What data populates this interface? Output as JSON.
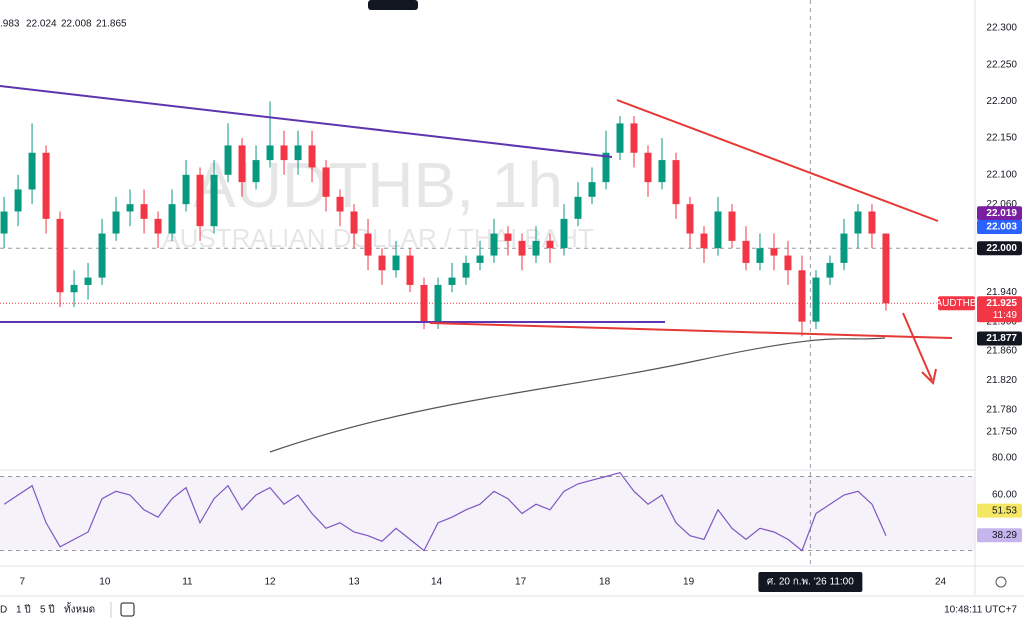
{
  "header": {
    "values": [
      ".983",
      "22.024",
      "22.008",
      "21.865"
    ]
  },
  "watermark": {
    "symbol": "AUDTHB, 1h",
    "description": "AUSTRALIAN DOLLAR / THAI BAHT"
  },
  "chart_data": [
    {
      "type": "candlestick",
      "first_open": 22.02,
      "close": [
        22.05,
        22.08,
        22.13,
        22.04,
        21.94,
        21.95,
        21.96,
        22.02,
        22.05,
        22.06,
        22.04,
        22.02,
        22.06,
        22.1,
        22.03,
        22.1,
        22.14,
        22.09,
        22.12,
        22.14,
        22.12,
        22.14,
        22.11,
        22.07,
        22.05,
        22.02,
        21.99,
        21.97,
        21.99,
        21.95,
        21.9,
        21.95,
        21.96,
        21.98,
        21.99,
        22.02,
        22.01,
        21.99,
        22.01,
        22.0,
        22.04,
        22.07,
        22.09,
        22.13,
        22.17,
        22.13,
        22.09,
        22.12,
        22.06,
        22.02,
        22.0,
        22.05,
        22.01,
        21.98,
        22.0,
        21.99,
        21.97,
        21.9,
        21.96,
        21.98,
        22.02,
        22.05,
        22.02,
        21.925
      ],
      "high": [
        22.07,
        22.1,
        22.17,
        22.14,
        22.05,
        21.97,
        21.98,
        22.04,
        22.07,
        22.08,
        22.08,
        22.05,
        22.08,
        22.12,
        22.11,
        22.12,
        22.17,
        22.15,
        22.14,
        22.2,
        22.16,
        22.16,
        22.16,
        22.12,
        22.08,
        22.06,
        22.04,
        22.0,
        22.01,
        22.0,
        21.96,
        21.96,
        21.98,
        21.99,
        22.01,
        22.04,
        22.03,
        22.02,
        22.03,
        22.02,
        22.06,
        22.09,
        22.11,
        22.16,
        22.18,
        22.18,
        22.14,
        22.15,
        22.13,
        22.07,
        22.03,
        22.07,
        22.06,
        22.03,
        22.02,
        22.02,
        22.01,
        21.99,
        21.97,
        21.99,
        22.04,
        22.06,
        22.06,
        22.02
      ],
      "low": [
        22.0,
        22.03,
        22.06,
        22.02,
        21.92,
        21.92,
        21.93,
        21.95,
        22.01,
        22.03,
        22.02,
        22.0,
        22.01,
        22.05,
        22.01,
        22.02,
        22.09,
        22.07,
        22.08,
        22.11,
        22.1,
        22.1,
        22.09,
        22.05,
        22.03,
        22.0,
        21.97,
        21.95,
        21.96,
        21.94,
        21.89,
        21.89,
        21.94,
        21.95,
        21.97,
        21.98,
        21.99,
        21.97,
        21.98,
        21.98,
        21.99,
        22.03,
        22.06,
        22.08,
        22.12,
        22.11,
        22.07,
        22.08,
        22.04,
        22.0,
        21.98,
        21.99,
        22.0,
        21.97,
        21.97,
        21.97,
        21.95,
        21.88,
        21.89,
        21.95,
        21.97,
        22.0,
        22.0,
        21.915
      ],
      "up_color": "#089981",
      "down_color": "#f23645",
      "xlim": [
        -0.29,
        69.36
      ],
      "xticks": [
        {
          "value": 1.3,
          "label": "7"
        },
        {
          "value": 7.2,
          "label": "10"
        },
        {
          "value": 13.1,
          "label": "11"
        },
        {
          "value": 19,
          "label": "12"
        },
        {
          "value": 25,
          "label": "13"
        },
        {
          "value": 30.9,
          "label": "14"
        },
        {
          "value": 36.9,
          "label": "17"
        },
        {
          "value": 42.9,
          "label": "18"
        },
        {
          "value": 48.9,
          "label": "19"
        },
        {
          "value": 66.9,
          "label": "24"
        }
      ],
      "crosshair": {
        "x": 57.6,
        "label": "ศ. 20 ก.พ. '26  11:00",
        "y": 22.0
      },
      "ylim": [
        21.698,
        22.338
      ],
      "yticks": [
        {
          "value": 22.3,
          "label": "22.300"
        },
        {
          "value": 22.25,
          "label": "22.250"
        },
        {
          "value": 22.2,
          "label": "22.200"
        },
        {
          "value": 22.15,
          "label": "22.150"
        },
        {
          "value": 22.1,
          "label": "22.100"
        },
        {
          "value": 22.06,
          "label": "22.060"
        },
        {
          "value": 21.94,
          "label": "21.940"
        },
        {
          "value": 21.9,
          "label": "21.900"
        },
        {
          "value": 21.86,
          "label": "21.860"
        },
        {
          "value": 21.82,
          "label": "21.820"
        },
        {
          "value": 21.78,
          "label": "21.780"
        },
        {
          "value": 21.75,
          "label": "21.750"
        }
      ],
      "price_tags": [
        {
          "value": 22.019,
          "label": "22.019",
          "color": "#7b1fa2"
        },
        {
          "value": 22.003,
          "label": "22.003",
          "color": "#2962ff"
        },
        {
          "value": 22.0,
          "label": "22.000",
          "color": "#131722"
        },
        {
          "value": 21.877,
          "label": "21.877",
          "color": "#131722"
        }
      ],
      "last_price": {
        "value": 21.925,
        "label": "21.925",
        "symbol": "AUDTHB",
        "countdown": "11:49",
        "color": "#f23645"
      }
    },
    {
      "type": "line",
      "name": "RSI",
      "values": [
        55,
        60,
        65,
        45,
        32,
        36,
        40,
        58,
        62,
        60,
        52,
        48,
        58,
        64,
        45,
        58,
        65,
        52,
        60,
        64,
        55,
        60,
        50,
        42,
        45,
        40,
        38,
        35,
        42,
        36,
        30,
        45,
        48,
        52,
        55,
        62,
        58,
        50,
        55,
        52,
        62,
        66,
        68,
        70,
        72,
        62,
        55,
        60,
        45,
        38,
        36,
        52,
        42,
        36,
        42,
        40,
        36,
        30,
        50,
        55,
        60,
        62,
        55,
        38
      ],
      "color": "#7e57c2",
      "ylim": [
        22.2,
        83.2
      ],
      "band": [
        30,
        70
      ],
      "yticks": [
        {
          "value": 80,
          "label": "80.00"
        },
        {
          "value": 60,
          "label": "60.00"
        }
      ],
      "tags": [
        {
          "value": 51.53,
          "label": "51.53",
          "color": "#f5e663"
        },
        {
          "value": 38.29,
          "label": "38.29",
          "color": "#c5b5ec"
        }
      ]
    }
  ],
  "footer": {
    "ranges": [
      "D",
      "1 ปี",
      "5 ปี",
      "ทั้งหมด"
    ],
    "clock": "10:48:11 UTC+7"
  }
}
